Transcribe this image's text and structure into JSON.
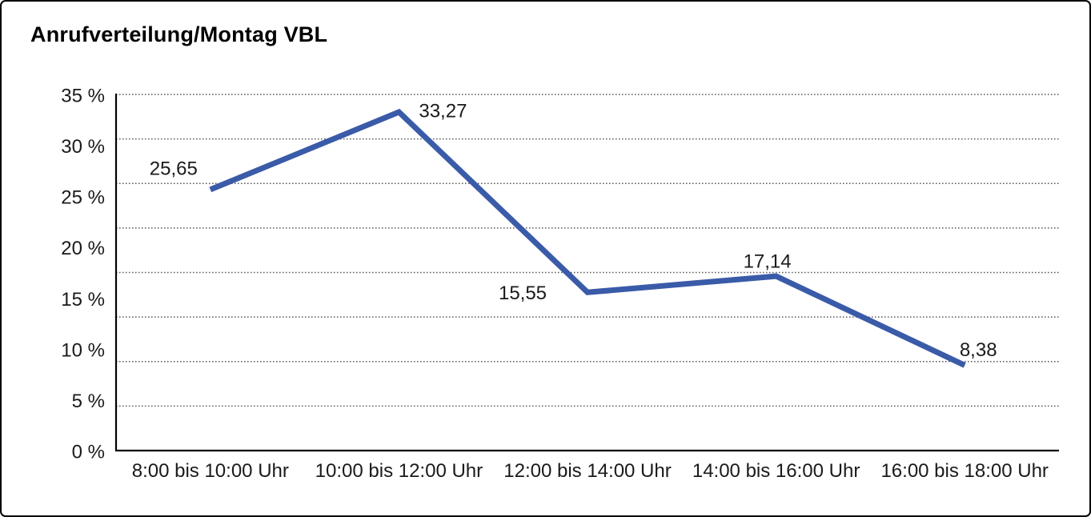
{
  "chart_data": {
    "type": "line",
    "title": "Anrufverteilung/Montag VBL",
    "categories": [
      "8:00 bis 10:00 Uhr",
      "10:00 bis 12:00 Uhr",
      "12:00 bis 14:00 Uhr",
      "14:00 bis 16:00 Uhr",
      "16:00 bis 18:00 Uhr"
    ],
    "values": [
      25.65,
      33.27,
      15.55,
      17.14,
      8.38
    ],
    "value_labels": [
      "25,65",
      "33,27",
      "15,55",
      "17,14",
      "8,38"
    ],
    "y_tick_labels": [
      "35 %",
      "30 %",
      "25 %",
      "20 %",
      "15 %",
      "10 %",
      "5 %",
      "0 %"
    ],
    "ylim": [
      0,
      35
    ],
    "xlabel": "",
    "ylabel": "",
    "legend": "none",
    "grid": "horizontal-dotted",
    "line_color": "#3a5ba8",
    "axis_color": "#000000",
    "gridline_color": "#555555",
    "label_color": "#1a1a1a"
  }
}
